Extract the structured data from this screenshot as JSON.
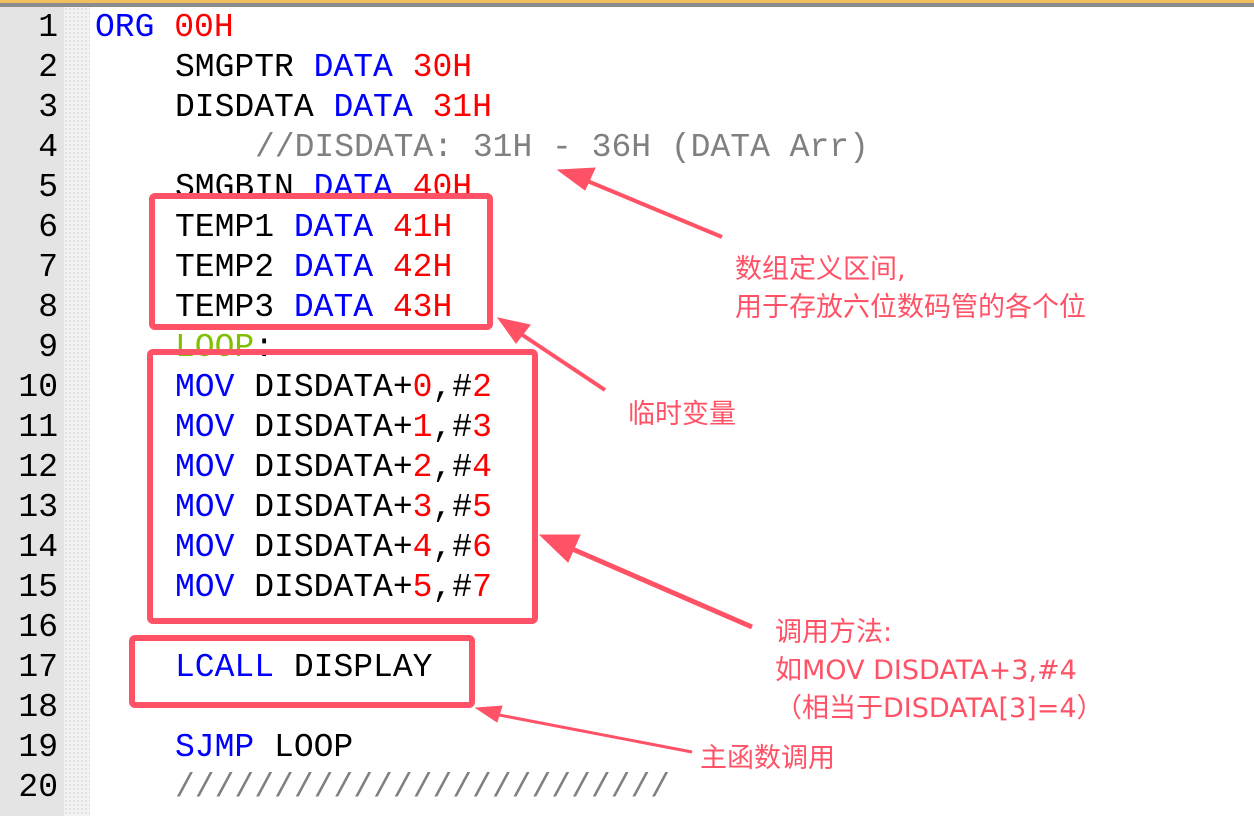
{
  "editor": {
    "lines": [
      {
        "n": "1",
        "indent": 0,
        "tokens": [
          {
            "t": "ORG",
            "c": "kw"
          },
          {
            "t": " "
          },
          {
            "t": "00H",
            "c": "num"
          }
        ]
      },
      {
        "n": "2",
        "indent": 4,
        "tokens": [
          {
            "t": "SMGPTR",
            "c": "id"
          },
          {
            "t": " "
          },
          {
            "t": "DATA",
            "c": "kw"
          },
          {
            "t": " "
          },
          {
            "t": "30H",
            "c": "num"
          }
        ]
      },
      {
        "n": "3",
        "indent": 4,
        "tokens": [
          {
            "t": "DISDATA",
            "c": "id"
          },
          {
            "t": " "
          },
          {
            "t": "DATA",
            "c": "kw"
          },
          {
            "t": " "
          },
          {
            "t": "31H",
            "c": "num"
          }
        ]
      },
      {
        "n": "4",
        "indent": 8,
        "tokens": [
          {
            "t": "//DISDATA: 31H - 36H (DATA Arr)",
            "c": "cm"
          }
        ]
      },
      {
        "n": "5",
        "indent": 4,
        "tokens": [
          {
            "t": "SMGBIN",
            "c": "id"
          },
          {
            "t": " "
          },
          {
            "t": "DATA",
            "c": "kw"
          },
          {
            "t": " "
          },
          {
            "t": "40H",
            "c": "num"
          }
        ]
      },
      {
        "n": "6",
        "indent": 4,
        "tokens": [
          {
            "t": "TEMP1",
            "c": "id"
          },
          {
            "t": " "
          },
          {
            "t": "DATA",
            "c": "kw"
          },
          {
            "t": " "
          },
          {
            "t": "41H",
            "c": "num"
          }
        ]
      },
      {
        "n": "7",
        "indent": 4,
        "tokens": [
          {
            "t": "TEMP2",
            "c": "id"
          },
          {
            "t": " "
          },
          {
            "t": "DATA",
            "c": "kw"
          },
          {
            "t": " "
          },
          {
            "t": "42H",
            "c": "num"
          }
        ]
      },
      {
        "n": "8",
        "indent": 4,
        "tokens": [
          {
            "t": "TEMP3",
            "c": "id"
          },
          {
            "t": " "
          },
          {
            "t": "DATA",
            "c": "kw"
          },
          {
            "t": " "
          },
          {
            "t": "43H",
            "c": "num"
          }
        ]
      },
      {
        "n": "9",
        "indent": 4,
        "tokens": [
          {
            "t": "LOOP",
            "c": "lbl"
          },
          {
            "t": ":",
            "c": "id"
          }
        ]
      },
      {
        "n": "10",
        "indent": 4,
        "tokens": [
          {
            "t": "MOV",
            "c": "kw"
          },
          {
            "t": " DISDATA+",
            "c": "id"
          },
          {
            "t": "0",
            "c": "num"
          },
          {
            "t": ",#",
            "c": "id"
          },
          {
            "t": "2",
            "c": "num"
          }
        ]
      },
      {
        "n": "11",
        "indent": 4,
        "tokens": [
          {
            "t": "MOV",
            "c": "kw"
          },
          {
            "t": " DISDATA+",
            "c": "id"
          },
          {
            "t": "1",
            "c": "num"
          },
          {
            "t": ",#",
            "c": "id"
          },
          {
            "t": "3",
            "c": "num"
          }
        ]
      },
      {
        "n": "12",
        "indent": 4,
        "tokens": [
          {
            "t": "MOV",
            "c": "kw"
          },
          {
            "t": " DISDATA+",
            "c": "id"
          },
          {
            "t": "2",
            "c": "num"
          },
          {
            "t": ",#",
            "c": "id"
          },
          {
            "t": "4",
            "c": "num"
          }
        ]
      },
      {
        "n": "13",
        "indent": 4,
        "tokens": [
          {
            "t": "MOV",
            "c": "kw"
          },
          {
            "t": " DISDATA+",
            "c": "id"
          },
          {
            "t": "3",
            "c": "num"
          },
          {
            "t": ",#",
            "c": "id"
          },
          {
            "t": "5",
            "c": "num"
          }
        ]
      },
      {
        "n": "14",
        "indent": 4,
        "tokens": [
          {
            "t": "MOV",
            "c": "kw"
          },
          {
            "t": " DISDATA+",
            "c": "id"
          },
          {
            "t": "4",
            "c": "num"
          },
          {
            "t": ",#",
            "c": "id"
          },
          {
            "t": "6",
            "c": "num"
          }
        ]
      },
      {
        "n": "15",
        "indent": 4,
        "tokens": [
          {
            "t": "MOV",
            "c": "kw"
          },
          {
            "t": " DISDATA+",
            "c": "id"
          },
          {
            "t": "5",
            "c": "num"
          },
          {
            "t": ",#",
            "c": "id"
          },
          {
            "t": "7",
            "c": "num"
          }
        ]
      },
      {
        "n": "16",
        "indent": 0,
        "tokens": []
      },
      {
        "n": "17",
        "indent": 4,
        "tokens": [
          {
            "t": "LCALL",
            "c": "kw"
          },
          {
            "t": " DISPLAY",
            "c": "id"
          }
        ]
      },
      {
        "n": "18",
        "indent": 0,
        "tokens": []
      },
      {
        "n": "19",
        "indent": 4,
        "tokens": [
          {
            "t": "SJMP",
            "c": "kw"
          },
          {
            "t": " LOOP",
            "c": "id"
          }
        ]
      },
      {
        "n": "20",
        "indent": 4,
        "tokens": [
          {
            "t": "/////////////////////////",
            "c": "sep"
          }
        ]
      }
    ]
  },
  "annotations": {
    "color": "#ff5266",
    "array_note": [
      "数组定义区间,",
      "用于存放六位数码管的各个位"
    ],
    "temp_note": "临时变量",
    "usage_note": [
      "调用方法:",
      "如MOV DISDATA+3,#4",
      "（相当于DISDATA[3]=4）"
    ],
    "call_note": "主函数调用"
  }
}
